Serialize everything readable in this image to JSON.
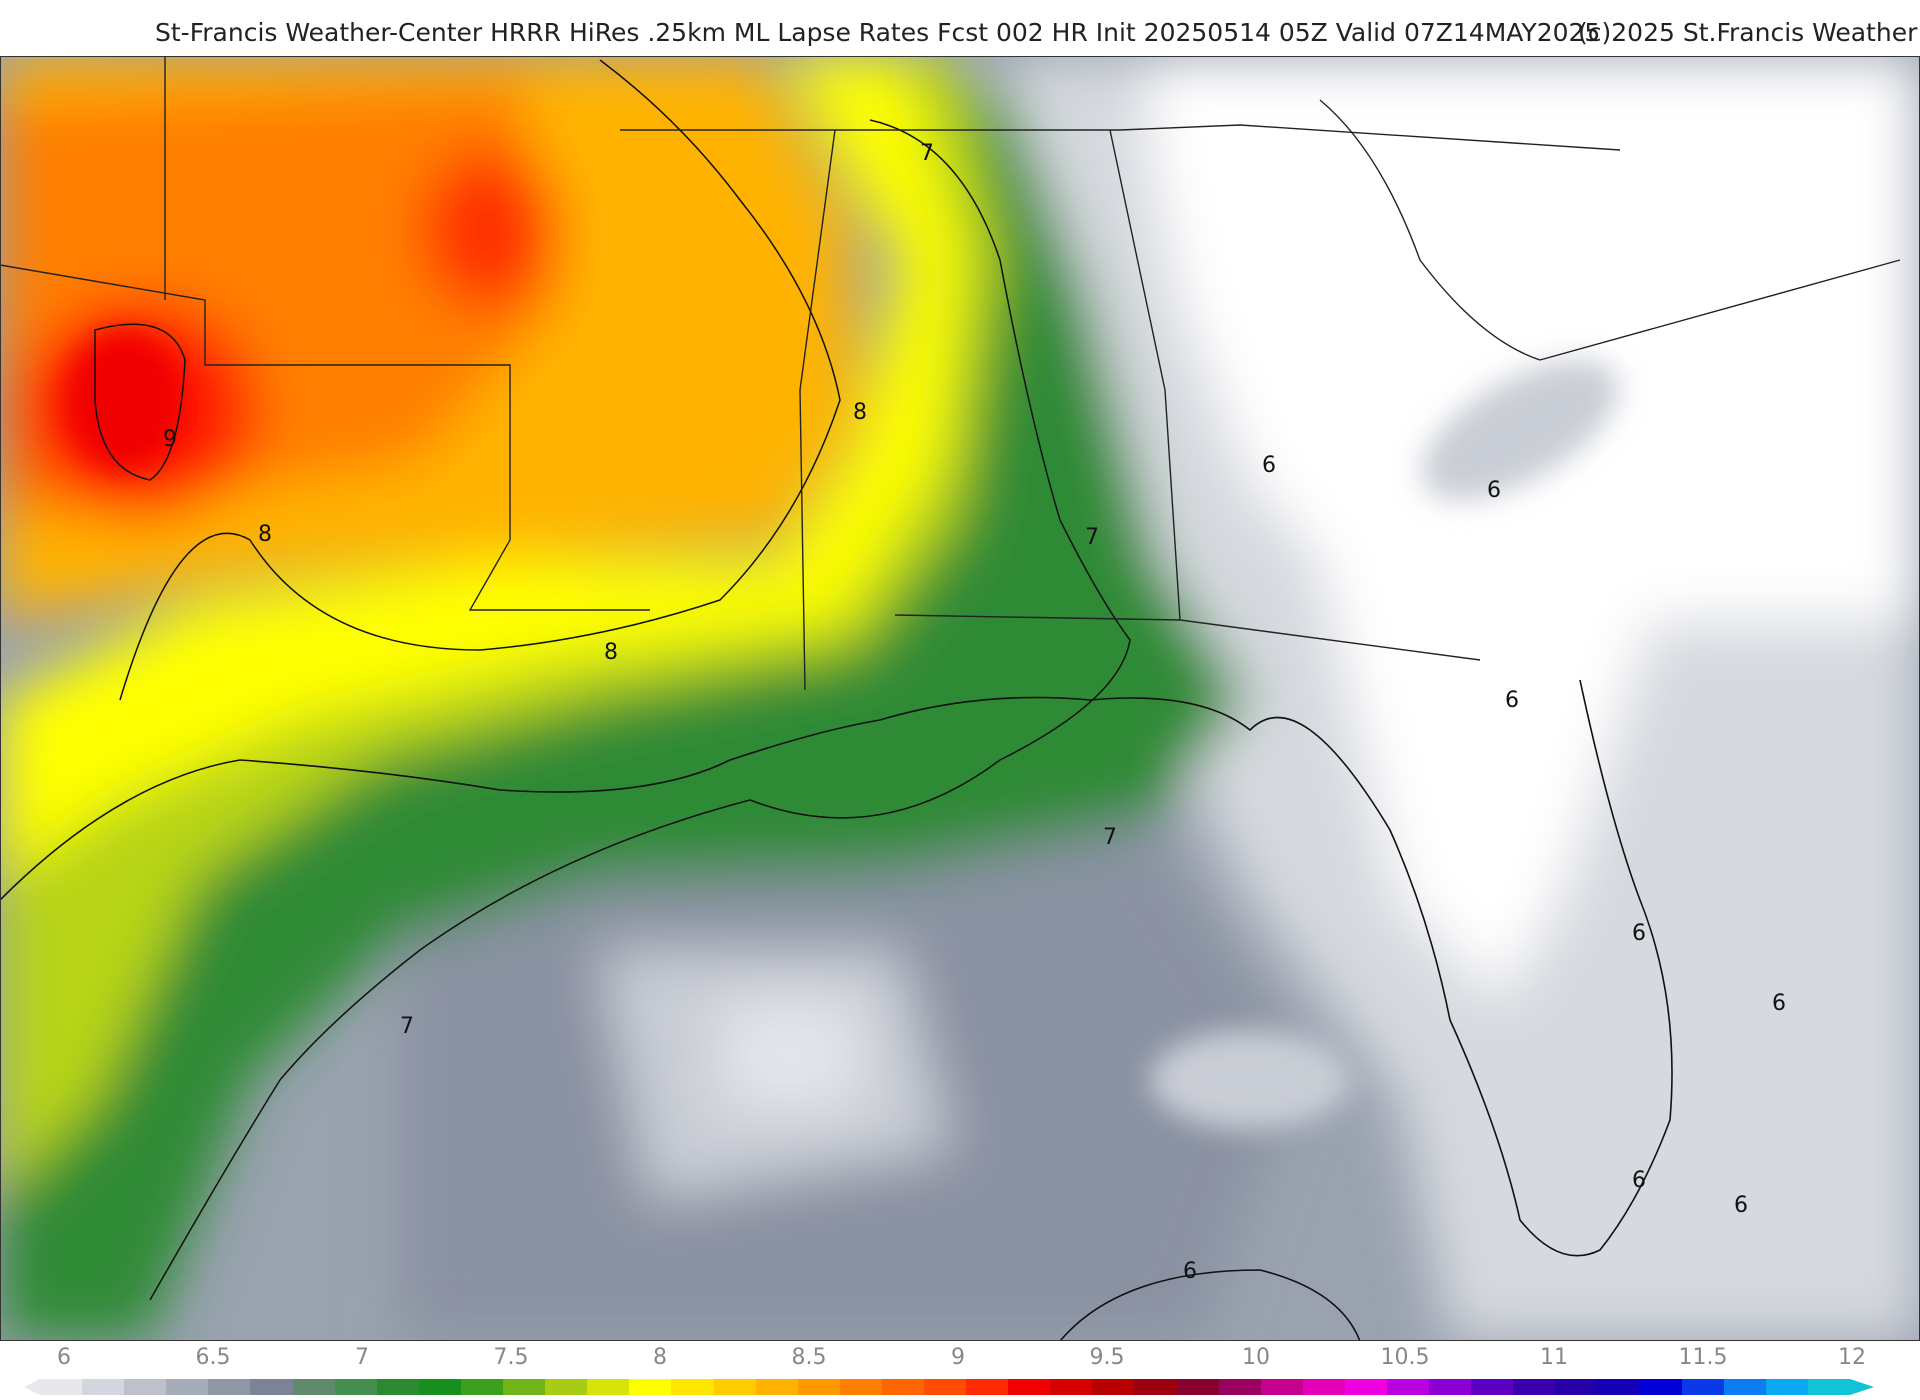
{
  "header": {
    "title_left": "St-Francis Weather-Center HRRR HiRes .25km ML Lapse Rates  Fcst 002 HR Init 20250514 05Z  Valid 07Z14MAY2025",
    "title_right": "(c)2025 St.Francis Weather"
  },
  "map": {
    "contour_labels": [
      "7",
      "8",
      "9",
      "8",
      "8",
      "7",
      "6",
      "6",
      "6",
      "7",
      "7",
      "6",
      "6",
      "6",
      "6",
      "6"
    ]
  },
  "colorbar": {
    "ticks": [
      "6",
      "6.5",
      "7",
      "7.5",
      "8",
      "8.5",
      "9",
      "9.5",
      "10",
      "10.5",
      "11",
      "11.5",
      "12"
    ],
    "colors": [
      "#e6e8ec",
      "#d3d6dd",
      "#bcc1cb",
      "#a6acb8",
      "#8f97a6",
      "#7b8494",
      "#5f8a6e",
      "#468e50",
      "#2a8a30",
      "#178f1e",
      "#3da01d",
      "#72b51b",
      "#a8cc14",
      "#d6e40a",
      "#ffff00",
      "#ffe600",
      "#ffcc00",
      "#ffb300",
      "#ff9900",
      "#ff7f00",
      "#ff6600",
      "#ff4c00",
      "#ff2a00",
      "#f00000",
      "#d50000",
      "#b80000",
      "#9c0010",
      "#880030",
      "#9a0060",
      "#c4008c",
      "#e400b8",
      "#f000e0",
      "#b800e0",
      "#8a00d4",
      "#5c00c4",
      "#3a00b0",
      "#2400a8",
      "#1400b8",
      "#0000d4",
      "#0a3ae8",
      "#0a7ef0",
      "#0aa8f0",
      "#11c3d8"
    ]
  }
}
